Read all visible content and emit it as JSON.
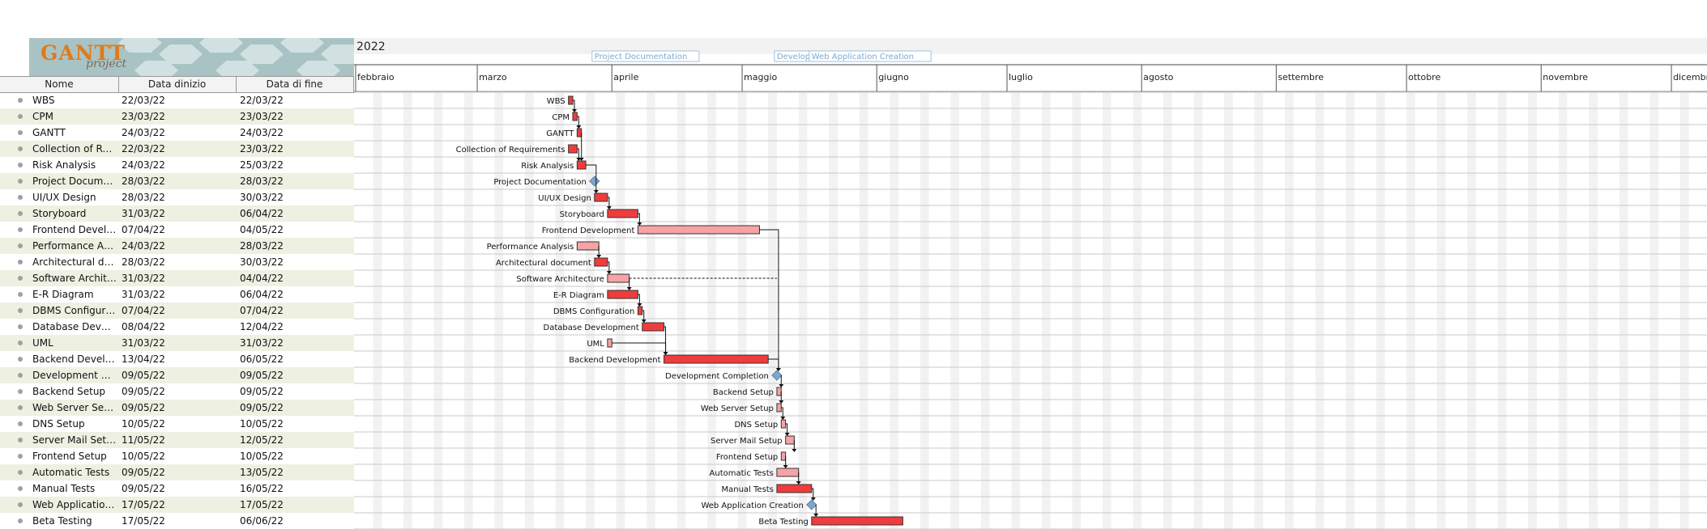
{
  "app": {
    "logo_text": "GANTT",
    "logo_subtext": "project"
  },
  "table": {
    "headers": {
      "name": "Nome",
      "start": "Data dinizio",
      "end": "Data di fine"
    },
    "rows": [
      {
        "name": "WBS",
        "short": "WBS",
        "start": "22/03/22",
        "end": "22/03/22"
      },
      {
        "name": "CPM",
        "short": "CPM",
        "start": "23/03/22",
        "end": "23/03/22"
      },
      {
        "name": "GANTT",
        "short": "GANTT",
        "start": "24/03/22",
        "end": "24/03/22"
      },
      {
        "name": "Collection of Requirements",
        "short": "Collection of Req...",
        "start": "22/03/22",
        "end": "23/03/22"
      },
      {
        "name": "Risk Analysis",
        "short": "Risk Analysis",
        "start": "24/03/22",
        "end": "25/03/22"
      },
      {
        "name": "Project Documentation",
        "short": "Project Document...",
        "start": "28/03/22",
        "end": "28/03/22"
      },
      {
        "name": "UI/UX Design",
        "short": "UI/UX Design",
        "start": "28/03/22",
        "end": "30/03/22"
      },
      {
        "name": "Storyboard",
        "short": "Storyboard",
        "start": "31/03/22",
        "end": "06/04/22"
      },
      {
        "name": "Frontend Development",
        "short": "Frontend Develop...",
        "start": "07/04/22",
        "end": "04/05/22"
      },
      {
        "name": "Performance Analysis",
        "short": "Performance Anal...",
        "start": "24/03/22",
        "end": "28/03/22"
      },
      {
        "name": "Architectural document",
        "short": "Architectural doc...",
        "start": "28/03/22",
        "end": "30/03/22"
      },
      {
        "name": "Software Architecture",
        "short": "Software Architect...",
        "start": "31/03/22",
        "end": "04/04/22"
      },
      {
        "name": "E-R Diagram",
        "short": "E-R Diagram",
        "start": "31/03/22",
        "end": "06/04/22"
      },
      {
        "name": "DBMS Configuration",
        "short": "DBMS Configurati...",
        "start": "07/04/22",
        "end": "07/04/22"
      },
      {
        "name": "Database Development",
        "short": "Database Develop...",
        "start": "08/04/22",
        "end": "12/04/22"
      },
      {
        "name": "UML",
        "short": "UML",
        "start": "31/03/22",
        "end": "31/03/22"
      },
      {
        "name": "Backend Development",
        "short": "Backend Develop...",
        "start": "13/04/22",
        "end": "06/05/22"
      },
      {
        "name": "Development Completion",
        "short": "Development Co...",
        "start": "09/05/22",
        "end": "09/05/22"
      },
      {
        "name": "Backend Setup",
        "short": "Backend Setup",
        "start": "09/05/22",
        "end": "09/05/22"
      },
      {
        "name": "Web Server Setup",
        "short": "Web Server Setup",
        "start": "09/05/22",
        "end": "09/05/22"
      },
      {
        "name": "DNS Setup",
        "short": "DNS Setup",
        "start": "10/05/22",
        "end": "10/05/22"
      },
      {
        "name": "Server Mail Setup",
        "short": "Server Mail Setup",
        "start": "11/05/22",
        "end": "12/05/22"
      },
      {
        "name": "Frontend Setup",
        "short": "Frontend Setup",
        "start": "10/05/22",
        "end": "10/05/22"
      },
      {
        "name": "Automatic Tests",
        "short": "Automatic Tests",
        "start": "09/05/22",
        "end": "13/05/22"
      },
      {
        "name": "Manual Tests",
        "short": "Manual Tests",
        "start": "09/05/22",
        "end": "16/05/22"
      },
      {
        "name": "Web Application Creation",
        "short": "Web Application ...",
        "start": "17/05/22",
        "end": "17/05/22"
      },
      {
        "name": "Beta Testing",
        "short": "Beta Testing",
        "start": "17/05/22",
        "end": "06/06/22"
      }
    ]
  },
  "timeline": {
    "year": "2022",
    "months": [
      "febbraio",
      "marzo",
      "aprile",
      "maggio",
      "giugno",
      "luglio",
      "agosto",
      "settembre",
      "ottobre",
      "novembre",
      "dicembre"
    ],
    "milestone_labels": [
      "Project Documentation",
      "Develop",
      "Web Application Creation"
    ]
  },
  "colors": {
    "critical": "#f03c3c",
    "normal": "#f5a3a6",
    "milestone": "#7fa7c9",
    "row_alt": "#eef0e2"
  }
}
